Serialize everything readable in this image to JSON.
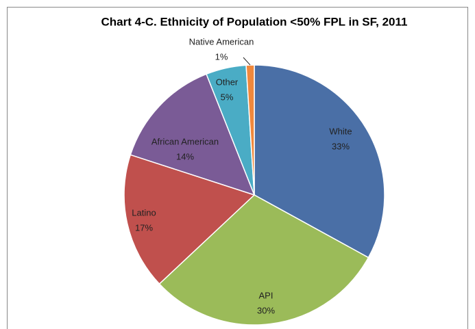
{
  "chart_data": {
    "type": "pie",
    "title": "Chart 4-C. Ethnicity of Population <50% FPL in SF, 2011",
    "categories": [
      "White",
      "API",
      "Latino",
      "African American",
      "Other",
      "Native American"
    ],
    "values": [
      33,
      30,
      17,
      14,
      5,
      1
    ],
    "value_labels": [
      "33%",
      "30%",
      "17%",
      "14%",
      "5%",
      "1%"
    ],
    "colors": [
      "#4a6fa6",
      "#9bbb59",
      "#c0504d",
      "#7a5b96",
      "#4aacc5",
      "#f0883c"
    ]
  }
}
